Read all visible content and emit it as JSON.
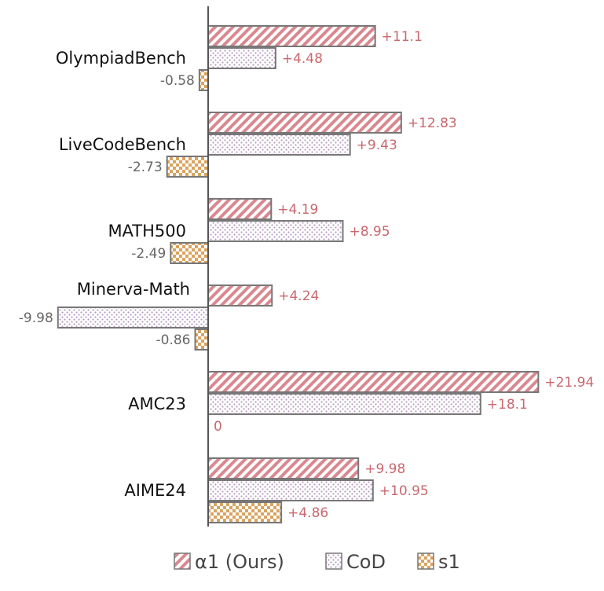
{
  "chart_data": {
    "type": "bar",
    "orientation": "horizontal",
    "categories": [
      "OlympiadBench",
      "LiveCodeBench",
      "MATH500",
      "Minerva-Math",
      "AMC23",
      "AIME24"
    ],
    "series": [
      {
        "name": "α1 (Ours)",
        "values": [
          11.1,
          12.83,
          4.19,
          4.24,
          21.94,
          9.98
        ],
        "labels": [
          "+11.1",
          "+12.83",
          "+4.19",
          "+4.24",
          "+21.94",
          "+9.98"
        ],
        "color": "#d98890",
        "pattern": "diagonal-stripes"
      },
      {
        "name": "CoD",
        "values": [
          4.48,
          9.43,
          8.95,
          -9.98,
          18.1,
          10.95
        ],
        "labels": [
          "+4.48",
          "+9.43",
          "+8.95",
          "-9.98",
          "+18.1",
          "+10.95"
        ],
        "color": "#b89cc0",
        "pattern": "dots"
      },
      {
        "name": "s1",
        "values": [
          -0.58,
          -2.73,
          -2.49,
          -0.86,
          0,
          4.86
        ],
        "labels": [
          "-0.58",
          "-2.73",
          "-2.49",
          "-0.86",
          "0",
          "+4.86"
        ],
        "color": "#d9a460",
        "pattern": "checker"
      }
    ],
    "xlim": [
      -10.5,
      22.5
    ],
    "grid": false,
    "legend_position": "bottom",
    "positive_label_color": "#c9686e",
    "negative_label_color": "#666666"
  }
}
